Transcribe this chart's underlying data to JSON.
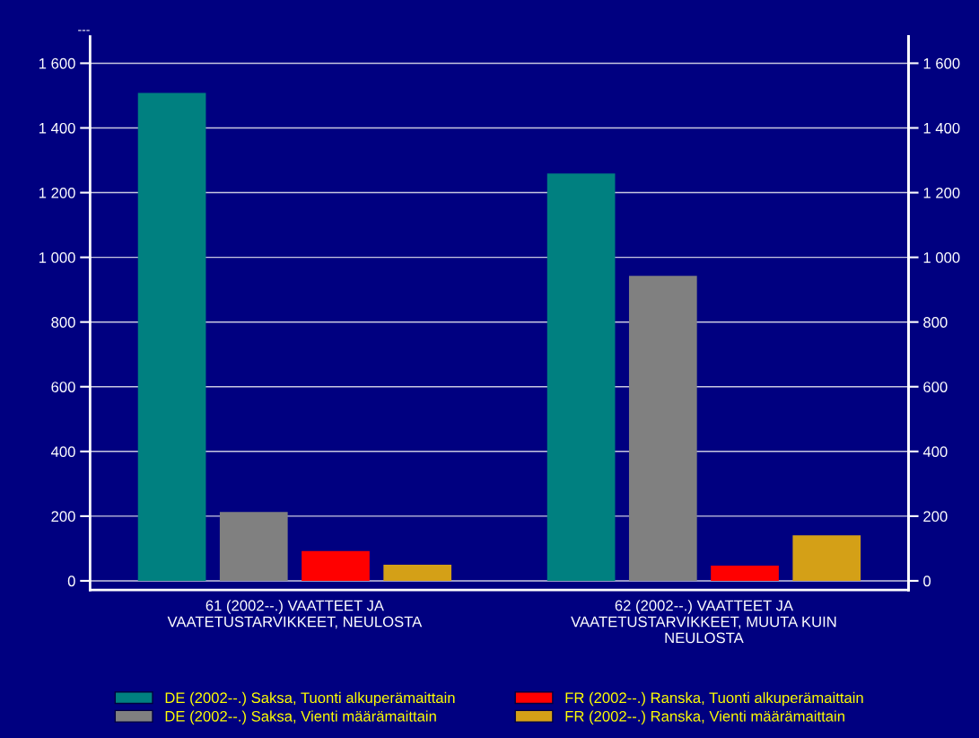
{
  "chart_data": {
    "type": "bar",
    "ylabel": "---",
    "categories": [
      "61 (2002--.) VAATTEET JA\nVAATETUSTARVIKKEET, NEULOSTA",
      "62 (2002--.) VAATTEET JA\nVAATETUSTARVIKKEET, MUUTA KUIN\nNEULOSTA"
    ],
    "series": [
      {
        "name": "DE (2002--.) Saksa, Tuonti alkuperämaittain",
        "color": "#008080",
        "values": [
          1508,
          1259
        ]
      },
      {
        "name": "DE (2002--.) Saksa, Vienti määrämaittain",
        "color": "#808080",
        "values": [
          213,
          943
        ]
      },
      {
        "name": "FR (2002--.) Ranska, Tuonti alkuperämaittain",
        "color": "#ff0000",
        "values": [
          92,
          47
        ]
      },
      {
        "name": "FR (2002--.) Ranska, Vienti määrämaittain",
        "color": "#d4a017",
        "values": [
          50,
          141
        ]
      }
    ],
    "ylim": [
      -28,
      1683
    ],
    "yticks": [
      0,
      200,
      400,
      600,
      800,
      {
        "value": 1000,
        "label": "1 000"
      },
      {
        "value": 1200,
        "label": "1 200"
      },
      {
        "value": 1400,
        "label": "1 400"
      },
      {
        "value": 1600,
        "label": "1 600"
      }
    ],
    "y2lim": [
      -28,
      1683
    ],
    "y2ticks": [
      0,
      200,
      400,
      600,
      800,
      {
        "value": 1000,
        "label": "1 000"
      },
      {
        "value": 1200,
        "label": "1 200"
      },
      {
        "value": 1400,
        "label": "1 400"
      },
      {
        "value": 1600,
        "label": "1 600"
      }
    ],
    "grid": "y",
    "legend": "bottom"
  }
}
